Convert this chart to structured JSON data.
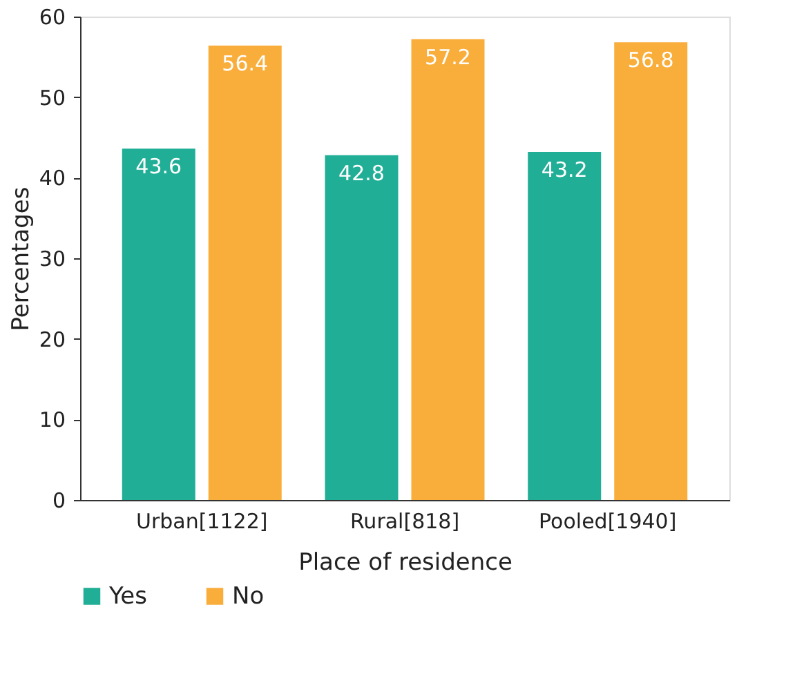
{
  "chart_data": {
    "type": "bar",
    "xlabel": "Place of residence",
    "ylabel": "Percentages",
    "categories": [
      "Urban[1122]",
      "Rural[818]",
      "Pooled[1940]"
    ],
    "series": [
      {
        "name": "Yes",
        "color": "#20ae96",
        "values": [
          43.6,
          42.8,
          43.2
        ]
      },
      {
        "name": "No",
        "color": "#f9ae3b",
        "values": [
          56.4,
          57.2,
          56.8
        ]
      }
    ],
    "ylim": [
      0,
      60
    ],
    "yticks": [
      0,
      10,
      20,
      30,
      40,
      50,
      60
    ],
    "grid": false,
    "legend": "bottom",
    "data_labels": true
  }
}
